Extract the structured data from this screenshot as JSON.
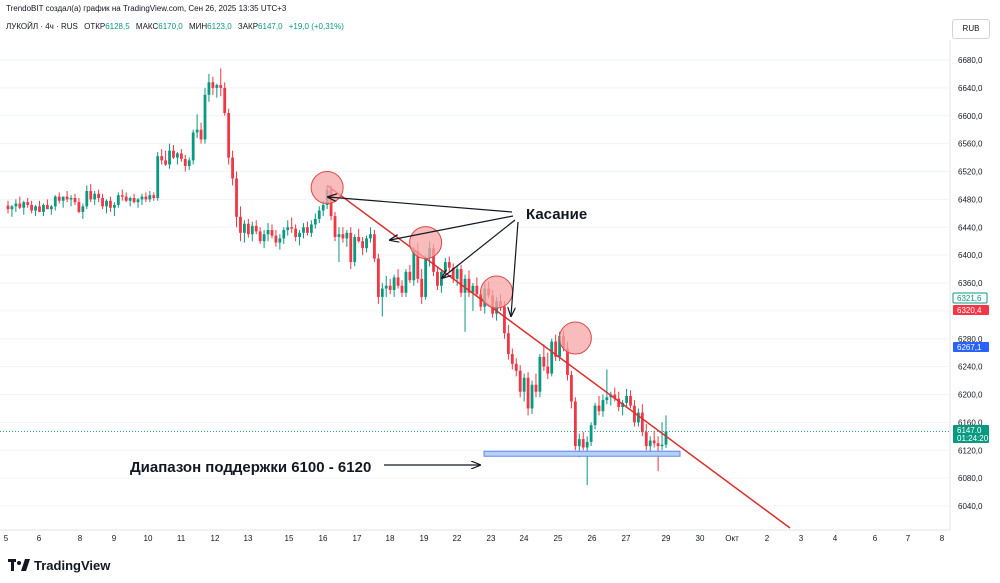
{
  "header": {
    "text": "TrendoBIT создал(а) график на TradingView.com, Сен 26, 2025 13:35 UTC+3"
  },
  "ohlc": {
    "symbol": "ЛУКОЙЛ · 4ч · RUS",
    "open_label": "ОТКР",
    "open": "6128,5",
    "high_label": "МАКС",
    "high": "6170,0",
    "low_label": "МИН",
    "low": "6123,0",
    "close_label": "ЗАКР",
    "close": "6147,0",
    "change": "+19,0 (+0,31%)"
  },
  "currency": "RUB",
  "footer": {
    "brand": "TradingView"
  },
  "annotations": {
    "touch": "Касание",
    "support": "Диапазон поддержки 6100 - 6120"
  },
  "colors": {
    "up": "#089981",
    "down": "#f23645",
    "trendline": "#d9302c",
    "circle_fill": "#f7a5a5",
    "circle_stroke": "#e04848",
    "support_fill": "#b9cff5",
    "support_stroke": "#5b8def",
    "price_green": "#089981",
    "price_red": "#f23645",
    "price_blue": "#2962ff"
  },
  "chart_data": {
    "type": "candlestick",
    "y_axis": {
      "ticks": [
        "6680,0",
        "6640,0",
        "6600,0",
        "6560,0",
        "6520,0",
        "6480,0",
        "6440,0",
        "6400,0",
        "6360,0",
        "6320,0",
        "6280,0",
        "6240,0",
        "6200,0",
        "6160,0",
        "6120,0",
        "6080,0",
        "6040,0"
      ],
      "tick_values": [
        6680,
        6640,
        6600,
        6560,
        6520,
        6480,
        6440,
        6400,
        6360,
        6320,
        6280,
        6240,
        6200,
        6160,
        6120,
        6080,
        6040
      ]
    },
    "x_axis": {
      "ticks": [
        "5",
        "6",
        "8",
        "9",
        "10",
        "11",
        "12",
        "13",
        "15",
        "16",
        "17",
        "18",
        "19",
        "22",
        "23",
        "24",
        "25",
        "26",
        "27",
        "29",
        "30",
        "Окт",
        "2",
        "3",
        "4",
        "6",
        "7",
        "8"
      ]
    },
    "price_labels": [
      {
        "text": "6321,6",
        "value": 6321.6,
        "color": "#089981",
        "style": "outline"
      },
      {
        "text": "6320,4",
        "value": 6320.4,
        "color": "#f23645",
        "style": "fill"
      },
      {
        "text": "6267,1",
        "value": 6267.1,
        "color": "#2962ff",
        "style": "fill"
      },
      {
        "text": "6147,0",
        "value": 6147.0,
        "color": "#089981",
        "style": "fill"
      },
      {
        "text": "01:24:20",
        "value": 6140.0,
        "color": "#089981",
        "style": "fill"
      }
    ],
    "current_price": 6147.0,
    "support_range": [
      6100,
      6120
    ],
    "trendline": {
      "start": {
        "candle": 81,
        "value": 6500
      },
      "end_value_at_right": 6010
    },
    "touches": [
      {
        "candle": 81,
        "value": 6497
      },
      {
        "candle": 106,
        "value": 6418
      },
      {
        "candle": 124,
        "value": 6347
      },
      {
        "candle": 144,
        "value": 6281
      }
    ],
    "candles": [
      [
        6471,
        6478,
        6460,
        6466
      ],
      [
        6466,
        6472,
        6455,
        6470
      ],
      [
        6470,
        6480,
        6462,
        6474
      ],
      [
        6474,
        6484,
        6466,
        6468
      ],
      [
        6468,
        6478,
        6458,
        6476
      ],
      [
        6476,
        6482,
        6468,
        6472
      ],
      [
        6472,
        6478,
        6460,
        6464
      ],
      [
        6464,
        6472,
        6456,
        6470
      ],
      [
        6470,
        6478,
        6462,
        6462
      ],
      [
        6462,
        6474,
        6456,
        6472
      ],
      [
        6472,
        6480,
        6466,
        6466
      ],
      [
        6466,
        6472,
        6458,
        6470
      ],
      [
        6470,
        6486,
        6464,
        6484
      ],
      [
        6484,
        6490,
        6474,
        6478
      ],
      [
        6478,
        6484,
        6468,
        6484
      ],
      [
        6484,
        6492,
        6476,
        6480
      ],
      [
        6480,
        6486,
        6470,
        6482
      ],
      [
        6482,
        6488,
        6472,
        6476
      ],
      [
        6476,
        6482,
        6460,
        6462
      ],
      [
        6462,
        6474,
        6452,
        6470
      ],
      [
        6470,
        6500,
        6466,
        6492
      ],
      [
        6492,
        6502,
        6476,
        6480
      ],
      [
        6480,
        6492,
        6472,
        6488
      ],
      [
        6488,
        6494,
        6476,
        6482
      ],
      [
        6482,
        6488,
        6466,
        6470
      ],
      [
        6470,
        6480,
        6460,
        6478
      ],
      [
        6478,
        6484,
        6462,
        6468
      ],
      [
        6468,
        6476,
        6456,
        6472
      ],
      [
        6472,
        6490,
        6468,
        6486
      ],
      [
        6486,
        6494,
        6478,
        6484
      ],
      [
        6484,
        6490,
        6476,
        6478
      ],
      [
        6478,
        6484,
        6470,
        6482
      ],
      [
        6482,
        6488,
        6474,
        6476
      ],
      [
        6476,
        6482,
        6468,
        6480
      ],
      [
        6480,
        6488,
        6472,
        6484
      ],
      [
        6484,
        6490,
        6476,
        6480
      ],
      [
        6480,
        6492,
        6476,
        6486
      ],
      [
        6486,
        6490,
        6478,
        6482
      ],
      [
        6482,
        6548,
        6478,
        6542
      ],
      [
        6542,
        6552,
        6530,
        6536
      ],
      [
        6536,
        6550,
        6528,
        6530
      ],
      [
        6530,
        6560,
        6524,
        6550
      ],
      [
        6550,
        6558,
        6538,
        6540
      ],
      [
        6540,
        6548,
        6530,
        6546
      ],
      [
        6546,
        6552,
        6534,
        6538
      ],
      [
        6538,
        6544,
        6520,
        6528
      ],
      [
        6528,
        6540,
        6522,
        6536
      ],
      [
        6536,
        6580,
        6530,
        6576
      ],
      [
        6576,
        6602,
        6568,
        6580
      ],
      [
        6580,
        6590,
        6560,
        6566
      ],
      [
        6566,
        6640,
        6560,
        6630
      ],
      [
        6630,
        6660,
        6620,
        6648
      ],
      [
        6648,
        6656,
        6630,
        6640
      ],
      [
        6640,
        6646,
        6626,
        6644
      ],
      [
        6644,
        6668,
        6628,
        6640
      ],
      [
        6640,
        6648,
        6600,
        6604
      ],
      [
        6604,
        6610,
        6530,
        6540
      ],
      [
        6540,
        6550,
        6500,
        6510
      ],
      [
        6510,
        6520,
        6440,
        6455
      ],
      [
        6455,
        6470,
        6420,
        6432
      ],
      [
        6432,
        6450,
        6418,
        6445
      ],
      [
        6445,
        6452,
        6425,
        6430
      ],
      [
        6430,
        6448,
        6420,
        6442
      ],
      [
        6442,
        6450,
        6430,
        6434
      ],
      [
        6434,
        6440,
        6416,
        6420
      ],
      [
        6420,
        6436,
        6410,
        6430
      ],
      [
        6430,
        6446,
        6420,
        6436
      ],
      [
        6436,
        6444,
        6424,
        6428
      ],
      [
        6428,
        6436,
        6412,
        6418
      ],
      [
        6418,
        6430,
        6408,
        6424
      ],
      [
        6424,
        6440,
        6416,
        6436
      ],
      [
        6436,
        6450,
        6428,
        6440
      ],
      [
        6440,
        6454,
        6432,
        6438
      ],
      [
        6438,
        6444,
        6420,
        6426
      ],
      [
        6426,
        6436,
        6414,
        6432
      ],
      [
        6432,
        6446,
        6424,
        6440
      ],
      [
        6440,
        6448,
        6428,
        6432
      ],
      [
        6432,
        6450,
        6426,
        6444
      ],
      [
        6444,
        6460,
        6438,
        6452
      ],
      [
        6452,
        6470,
        6446,
        6464
      ],
      [
        6464,
        6478,
        6456,
        6472
      ],
      [
        6472,
        6500,
        6466,
        6494
      ],
      [
        6494,
        6500,
        6450,
        6456
      ],
      [
        6456,
        6462,
        6420,
        6426
      ],
      [
        6426,
        6440,
        6390,
        6430
      ],
      [
        6430,
        6440,
        6418,
        6424
      ],
      [
        6424,
        6436,
        6412,
        6432
      ],
      [
        6432,
        6440,
        6380,
        6390
      ],
      [
        6390,
        6430,
        6384,
        6426
      ],
      [
        6426,
        6438,
        6418,
        6420
      ],
      [
        6420,
        6426,
        6400,
        6410
      ],
      [
        6410,
        6428,
        6404,
        6424
      ],
      [
        6424,
        6440,
        6418,
        6430
      ],
      [
        6430,
        6436,
        6390,
        6395
      ],
      [
        6395,
        6402,
        6330,
        6340
      ],
      [
        6340,
        6360,
        6312,
        6352
      ],
      [
        6352,
        6370,
        6340,
        6356
      ],
      [
        6356,
        6366,
        6344,
        6350
      ],
      [
        6350,
        6372,
        6340,
        6368
      ],
      [
        6368,
        6380,
        6352,
        6356
      ],
      [
        6356,
        6364,
        6340,
        6346
      ],
      [
        6346,
        6380,
        6340,
        6376
      ],
      [
        6376,
        6386,
        6360,
        6364
      ],
      [
        6364,
        6412,
        6356,
        6406
      ],
      [
        6406,
        6418,
        6360,
        6366
      ],
      [
        6366,
        6380,
        6330,
        6340
      ],
      [
        6340,
        6400,
        6336,
        6396
      ],
      [
        6396,
        6420,
        6384,
        6410
      ],
      [
        6410,
        6416,
        6370,
        6376
      ],
      [
        6376,
        6384,
        6350,
        6356
      ],
      [
        6356,
        6380,
        6346,
        6376
      ],
      [
        6376,
        6396,
        6368,
        6390
      ],
      [
        6390,
        6398,
        6376,
        6382
      ],
      [
        6382,
        6388,
        6360,
        6366
      ],
      [
        6366,
        6384,
        6356,
        6380
      ],
      [
        6380,
        6386,
        6340,
        6346
      ],
      [
        6346,
        6372,
        6290,
        6366
      ],
      [
        6366,
        6378,
        6340,
        6346
      ],
      [
        6346,
        6360,
        6320,
        6356
      ],
      [
        6356,
        6368,
        6340,
        6344
      ],
      [
        6344,
        6350,
        6320,
        6326
      ],
      [
        6326,
        6360,
        6316,
        6352
      ],
      [
        6352,
        6362,
        6338,
        6342
      ],
      [
        6342,
        6350,
        6310,
        6316
      ],
      [
        6316,
        6340,
        6306,
        6334
      ],
      [
        6334,
        6344,
        6320,
        6326
      ],
      [
        6326,
        6334,
        6280,
        6288
      ],
      [
        6288,
        6300,
        6250,
        6258
      ],
      [
        6258,
        6266,
        6236,
        6244
      ],
      [
        6244,
        6252,
        6226,
        6234
      ],
      [
        6234,
        6242,
        6196,
        6204
      ],
      [
        6204,
        6230,
        6190,
        6224
      ],
      [
        6224,
        6232,
        6170,
        6180
      ],
      [
        6180,
        6220,
        6172,
        6214
      ],
      [
        6214,
        6230,
        6196,
        6204
      ],
      [
        6204,
        6258,
        6196,
        6254
      ],
      [
        6254,
        6272,
        6234,
        6240
      ],
      [
        6240,
        6260,
        6222,
        6230
      ],
      [
        6230,
        6280,
        6226,
        6276
      ],
      [
        6276,
        6286,
        6248,
        6254
      ],
      [
        6254,
        6290,
        6248,
        6284
      ],
      [
        6284,
        6292,
        6262,
        6266
      ],
      [
        6266,
        6276,
        6220,
        6228
      ],
      [
        6228,
        6234,
        6180,
        6190
      ],
      [
        6190,
        6196,
        6120,
        6126
      ],
      [
        6126,
        6144,
        6110,
        6136
      ],
      [
        6136,
        6146,
        6120,
        6124
      ],
      [
        6124,
        6140,
        6070,
        6132
      ],
      [
        6132,
        6160,
        6126,
        6156
      ],
      [
        6156,
        6188,
        6150,
        6184
      ],
      [
        6184,
        6198,
        6170,
        6176
      ],
      [
        6176,
        6200,
        6168,
        6192
      ],
      [
        6192,
        6236,
        6186,
        6196
      ],
      [
        6196,
        6204,
        6184,
        6200
      ],
      [
        6200,
        6210,
        6190,
        6194
      ],
      [
        6194,
        6204,
        6176,
        6182
      ],
      [
        6182,
        6192,
        6170,
        6188
      ],
      [
        6188,
        6208,
        6182,
        6198
      ],
      [
        6198,
        6206,
        6180,
        6184
      ],
      [
        6184,
        6192,
        6154,
        6160
      ],
      [
        6160,
        6180,
        6154,
        6174
      ],
      [
        6174,
        6186,
        6140,
        6146
      ],
      [
        6146,
        6158,
        6120,
        6126
      ],
      [
        6126,
        6140,
        6116,
        6134
      ],
      [
        6134,
        6148,
        6124,
        6130
      ],
      [
        6130,
        6140,
        6090,
        6126
      ],
      [
        6126,
        6160,
        6120,
        6128
      ],
      [
        6128,
        6170,
        6123,
        6147
      ]
    ]
  }
}
